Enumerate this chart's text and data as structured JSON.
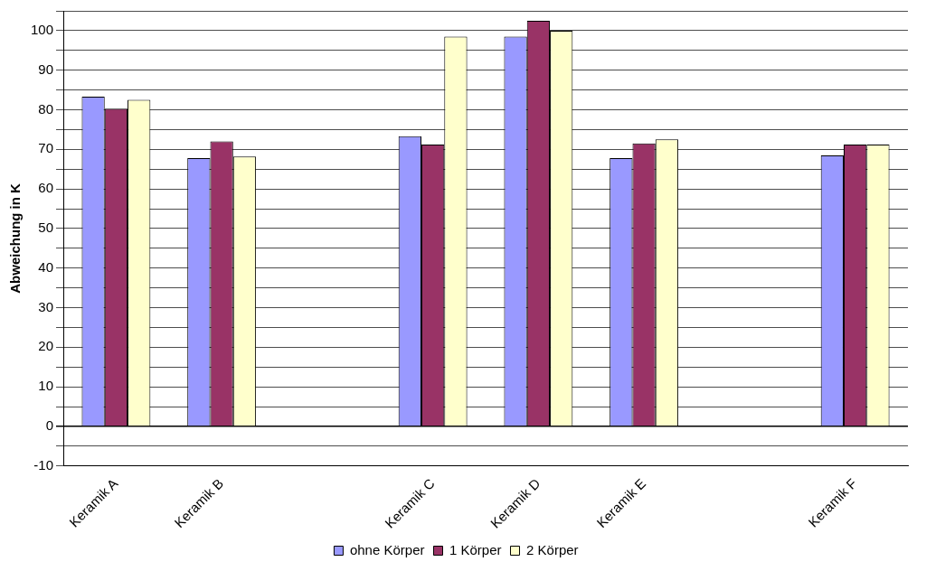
{
  "chart_data": {
    "type": "bar",
    "ylabel": "Abweichung in K",
    "categories": [
      "Keramik A",
      "Keramik B",
      null,
      "Keramik C",
      "Keramik D",
      "Keramik E",
      null,
      "Keramik F"
    ],
    "series": [
      {
        "name": "ohne Körper",
        "color": "#9999ff",
        "values": [
          83.3,
          67.8,
          null,
          73.3,
          98.5,
          67.8,
          null,
          68.5
        ]
      },
      {
        "name": "1 Körper",
        "color": "#993366",
        "values": [
          80.3,
          72,
          null,
          71.2,
          102.5,
          71.5,
          null,
          71.2
        ]
      },
      {
        "name": "2 Körper",
        "color": "#ffffcc",
        "values": [
          82.5,
          68.2,
          null,
          98.5,
          100,
          72.5,
          null,
          71.2
        ]
      }
    ],
    "ylim": [
      -10,
      105
    ],
    "yticks": [
      -10,
      {
        "value": -5,
        "label": null
      },
      0,
      {
        "value": 5,
        "label": null
      },
      10,
      {
        "value": 15,
        "label": null
      },
      20,
      {
        "value": 25,
        "label": null
      },
      30,
      {
        "value": 35,
        "label": null
      },
      40,
      {
        "value": 45,
        "label": null
      },
      50,
      {
        "value": 55,
        "label": null
      },
      60,
      {
        "value": 65,
        "label": null
      },
      70,
      {
        "value": 75,
        "label": null
      },
      80,
      {
        "value": 85,
        "label": null
      },
      90,
      {
        "value": 95,
        "label": null
      },
      100,
      {
        "value": 105,
        "label": null
      }
    ],
    "grid": "y",
    "legend": "bottom"
  }
}
